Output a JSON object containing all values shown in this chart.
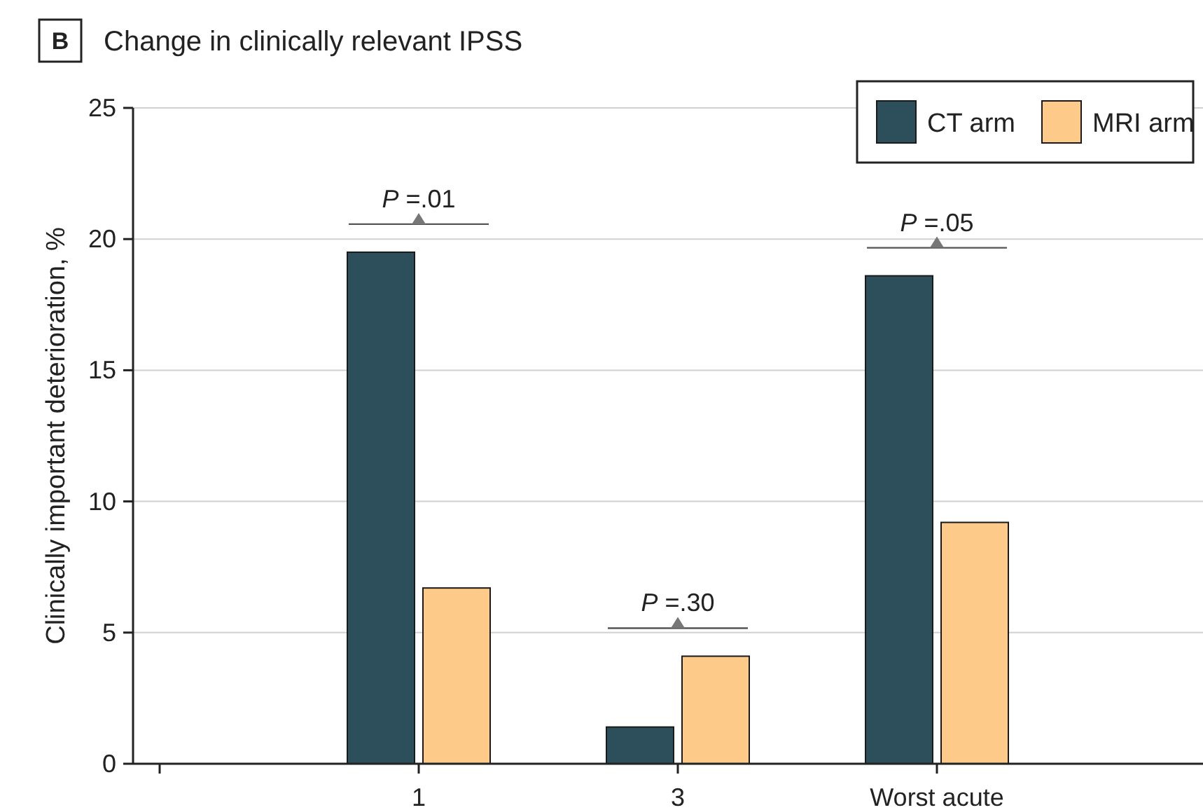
{
  "chart_data": {
    "type": "bar",
    "title": "Change in clinically relevant IPSS",
    "ylabel": "Clinically important deterioration, %",
    "categories": [
      null,
      "1",
      "3",
      "Worst acute"
    ],
    "series": [
      {
        "name": "CT arm",
        "color": "#2d4f5c",
        "values": [
          null,
          19.5,
          1.4,
          18.6
        ]
      },
      {
        "name": "MRI arm",
        "color": "#fdca8a",
        "values": [
          null,
          6.7,
          4.1,
          9.2
        ]
      }
    ],
    "ylim": [
      0,
      25
    ],
    "yticks": [
      0,
      5,
      10,
      15,
      20,
      25
    ],
    "grid": "y",
    "legend": "top right",
    "annotations": [
      "B",
      "P =.01",
      "P =.30",
      "P =.05"
    ]
  }
}
